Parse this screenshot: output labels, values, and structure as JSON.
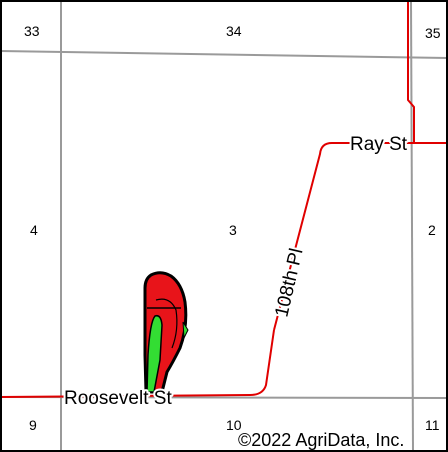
{
  "map": {
    "copyright": "©2022 AgriData, Inc.",
    "colors": {
      "road": "#e00000",
      "section_line": "#9a9a9a",
      "field_red": "#e8141a",
      "field_green": "#33dd33",
      "outline": "#000000"
    },
    "sections": [
      {
        "id": "33",
        "label": "33"
      },
      {
        "id": "34",
        "label": "34"
      },
      {
        "id": "35",
        "label": "35"
      },
      {
        "id": "4",
        "label": "4"
      },
      {
        "id": "3",
        "label": "3"
      },
      {
        "id": "2",
        "label": "2"
      },
      {
        "id": "9",
        "label": "9"
      },
      {
        "id": "10",
        "label": "10"
      },
      {
        "id": "11",
        "label": "11"
      }
    ],
    "roads": {
      "ray": "Ray St",
      "pl108": "108th Pl",
      "roosevelt": "Roosevelt St"
    }
  }
}
